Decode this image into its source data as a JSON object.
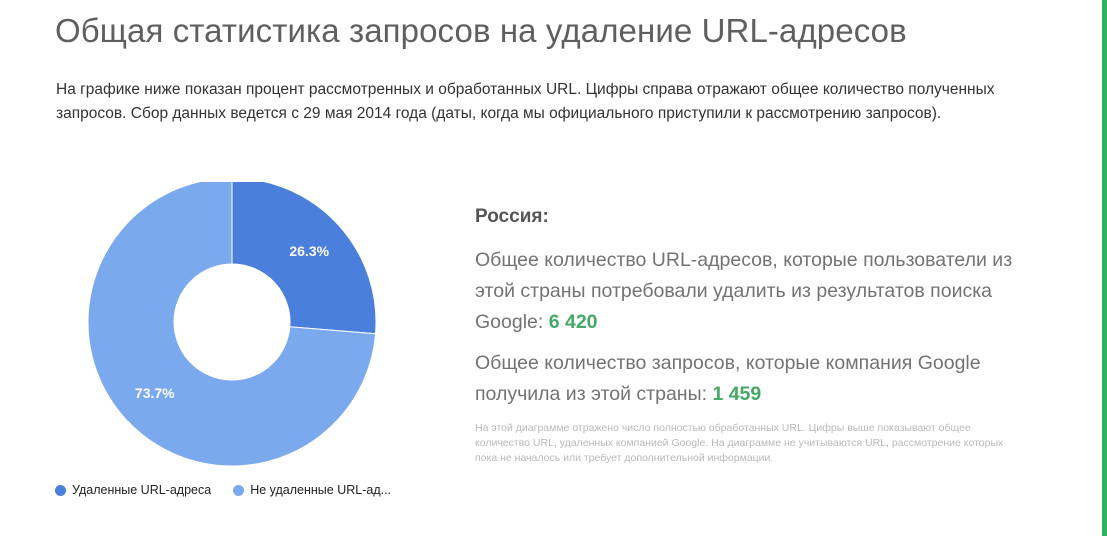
{
  "page": {
    "title": "Общая статистика запросов на удаление URL-адресов",
    "intro": "На графике ниже показан процент рассмотренных и обработанных URL. Цифры справа отражают общее количество полученных запросов. Сбор данных ведется с 29 мая 2014 года (даты, когда мы официального приступили к рассмотрению запросов)."
  },
  "stats": {
    "country": "Россия:",
    "urls_text": "Общее количество URL-адресов, которые пользователи из этой страны потребовали удалить из результатов поиска Google: ",
    "urls_value": "6 420",
    "requests_text": "Общее количество запросов, которые компания Google получила из этой страны: ",
    "requests_value": "1 459",
    "footnote": "На этой диаграмме отражено число полностью обработанных URL. Цифры выше показывают общее количество URL, удаленных компанией Google. На диаграмме не учитываются URL, рассмотрение которых пока не началось или требует дополнительной информации."
  },
  "colors": {
    "removed": "#4a7fdc",
    "not_removed": "#7ba9ee",
    "value_green": "#46a867"
  },
  "chart_data": {
    "type": "pie",
    "donut": true,
    "legend_position": "bottom-left",
    "slices": [
      {
        "name": "Удаленные URL-адреса",
        "value": 26.3,
        "label": "26.3%"
      },
      {
        "name": "Не удаленные URL-ад...",
        "value": 73.7,
        "label": "73.7%"
      }
    ]
  }
}
